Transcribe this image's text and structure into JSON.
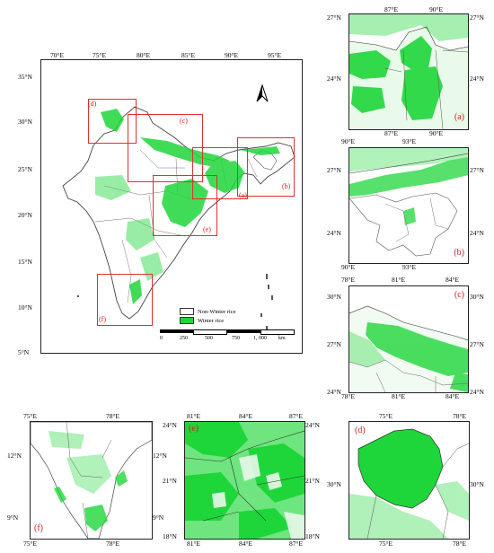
{
  "main": {
    "lon_ticks": [
      "70°E",
      "75°E",
      "80°E",
      "85°E",
      "90°E",
      "95°E"
    ],
    "lat_ticks": [
      "35°N",
      "30°N",
      "25°N",
      "20°N",
      "15°N",
      "10°N",
      "5°N"
    ],
    "inset_labels": [
      "(a)",
      "(b)",
      "(c)",
      "(d)",
      "(e)",
      "(f)"
    ],
    "legend": {
      "non_winter": "Non-Winter rice",
      "winter": "Winter rice"
    },
    "scale": [
      "0",
      "250",
      "500",
      "750",
      "1, 000",
      "km"
    ]
  },
  "panel_a": {
    "top": [
      "87°E",
      "90°E"
    ],
    "bottom": [
      "87°E",
      "90°E"
    ],
    "left": [
      "27°N",
      "24°N"
    ],
    "right": [
      "27°N",
      "24°N"
    ],
    "label": "(a)"
  },
  "panel_b": {
    "top": [
      "90°E",
      "93°E"
    ],
    "bottom": [
      "90°E",
      "93°E"
    ],
    "left": [
      "27°N",
      "24°N"
    ],
    "right": [
      "27°N",
      "24°N"
    ],
    "label": "(b)"
  },
  "panel_c": {
    "top": [
      "78°E",
      "81°E",
      "84°E"
    ],
    "bottom": [
      "78°E",
      "81°E",
      "84°E"
    ],
    "left": [
      "30°N",
      "27°N",
      "24°N"
    ],
    "right": [
      "30°N",
      "27°N",
      "24°N"
    ],
    "label": "(c)"
  },
  "panel_f": {
    "top": [
      "75°E",
      "78°E"
    ],
    "bottom": [
      "75°E",
      "78°E"
    ],
    "left": [
      "12°N",
      "9°N"
    ],
    "right": [
      "12°N",
      "9°N"
    ],
    "label": "(f)"
  },
  "panel_e": {
    "top": [
      "81°E",
      "84°E",
      "87°E"
    ],
    "bottom": [
      "81°E",
      "84°E",
      "87°E"
    ],
    "left": [
      "24°N",
      "21°N",
      "18°N"
    ],
    "right": [
      "24°N",
      "21°N",
      "18°N"
    ],
    "label": "(e)"
  },
  "panel_d": {
    "top": [
      "75°E",
      "78°E"
    ],
    "bottom": [
      "75°E",
      "78°E"
    ],
    "left": [
      "30°N"
    ],
    "right": [
      "30°N"
    ],
    "label": "(d)"
  },
  "colors": {
    "winter_rice": "#1fd63a",
    "inset_box": "#e03030",
    "border": "#555555"
  }
}
